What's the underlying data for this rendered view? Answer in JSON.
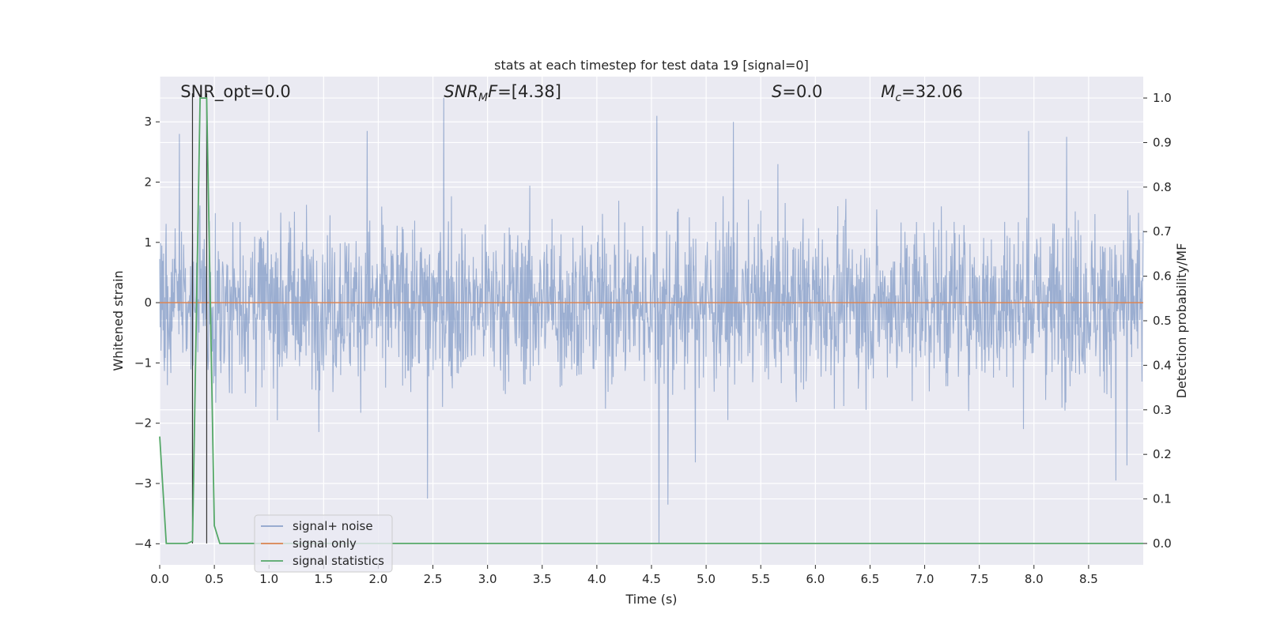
{
  "chart_data": {
    "type": "line",
    "title": "stats at each timestep for test data 19 [signal=0]",
    "xlabel": "Time (s)",
    "ylabel": "Whitened strain",
    "y2label": "Detection probability/MF",
    "xlim": [
      0,
      9.0
    ],
    "ylim": [
      -4.35,
      3.75
    ],
    "y2lim": [
      -0.048,
      1.048
    ],
    "x_ticks": [
      0.0,
      0.5,
      1.0,
      1.5,
      2.0,
      2.5,
      3.0,
      3.5,
      4.0,
      4.5,
      5.0,
      5.5,
      6.0,
      6.5,
      7.0,
      7.5,
      8.0,
      8.5
    ],
    "x_tick_labels": [
      "0.0",
      "0.5",
      "1.0",
      "1.5",
      "2.0",
      "2.5",
      "3.0",
      "3.5",
      "4.0",
      "4.5",
      "5.0",
      "5.5",
      "6.0",
      "6.5",
      "7.0",
      "7.5",
      "8.0",
      "8.5"
    ],
    "y_ticks": [
      -4,
      -3,
      -2,
      -1,
      0,
      1,
      2,
      3
    ],
    "y_tick_labels": [
      "−4",
      "−3",
      "−2",
      "−1",
      "0",
      "1",
      "2",
      "3"
    ],
    "y2_ticks": [
      0.0,
      0.1,
      0.2,
      0.3,
      0.4,
      0.5,
      0.6,
      0.7,
      0.8,
      0.9,
      1.0
    ],
    "y2_tick_labels": [
      "0.0",
      "0.1",
      "0.2",
      "0.3",
      "0.4",
      "0.5",
      "0.6",
      "0.7",
      "0.8",
      "0.9",
      "1.0"
    ],
    "grid": true,
    "legend_position": "lower-left",
    "annotations": [
      {
        "text": "SNR_opt=0.0",
        "x": 0.19
      },
      {
        "text": "SNR_MF=[4.38]",
        "x": 2.6
      },
      {
        "text": "S=0.0",
        "x": 5.6
      },
      {
        "text": "M_c=32.06",
        "x": 6.6
      }
    ],
    "vertical_markers_x": [
      0.3,
      0.43
    ],
    "series": [
      {
        "name": "signal+ noise",
        "color": "#4c72b0",
        "description_of_values": "dense noise trace, range approx",
        "range": [
          -4.0,
          3.4
        ],
        "peaks": [
          [
            0.18,
            2.8
          ],
          [
            1.9,
            2.85
          ],
          [
            2.6,
            3.4
          ],
          [
            4.55,
            3.1
          ],
          [
            5.25,
            3.0
          ],
          [
            7.95,
            2.85
          ],
          [
            8.3,
            2.75
          ]
        ],
        "troughs": [
          [
            2.45,
            -3.25
          ],
          [
            4.57,
            -4.0
          ],
          [
            4.65,
            -3.35
          ],
          [
            4.9,
            -2.65
          ],
          [
            8.75,
            -2.95
          ],
          [
            8.85,
            -2.7
          ]
        ]
      },
      {
        "name": "signal only",
        "color": "#dd8452",
        "x": [
          0.0,
          9.0
        ],
        "y": [
          0.0,
          0.0
        ]
      },
      {
        "name": "signal statistics",
        "color": "#55a868",
        "axis": "right",
        "x": [
          0.0,
          0.06,
          0.12,
          0.25,
          0.3,
          0.37,
          0.43,
          0.5,
          0.55,
          0.65,
          9.0
        ],
        "y": [
          0.24,
          0.0,
          0.0,
          0.0,
          0.005,
          1.0,
          1.0,
          0.04,
          0.0,
          0.0,
          0.0
        ]
      }
    ]
  }
}
